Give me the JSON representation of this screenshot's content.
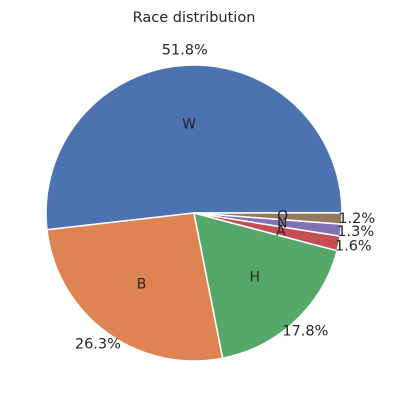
{
  "chart_data": {
    "type": "pie",
    "title": "Race distribution",
    "start_angle_deg": 0,
    "direction": "counterclockwise",
    "slices": [
      {
        "label": "W",
        "value": 51.8,
        "pct_label": "51.8%",
        "color": "#4c72b0"
      },
      {
        "label": "B",
        "value": 26.3,
        "pct_label": "26.3%",
        "color": "#dd8452"
      },
      {
        "label": "H",
        "value": 17.8,
        "pct_label": "17.8%",
        "color": "#55a868"
      },
      {
        "label": "A",
        "value": 1.6,
        "pct_label": "1.6%",
        "color": "#c44e52"
      },
      {
        "label": "N",
        "value": 1.3,
        "pct_label": "1.3%",
        "color": "#8172b3"
      },
      {
        "label": "O",
        "value": 1.2,
        "pct_label": "1.2%",
        "color": "#937860"
      }
    ]
  }
}
